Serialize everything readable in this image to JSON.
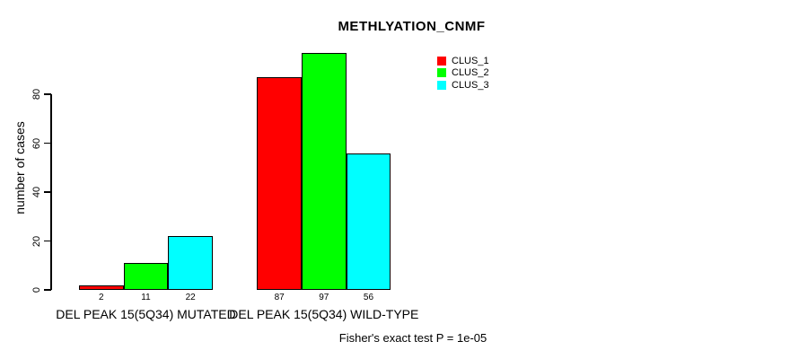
{
  "chart_data": {
    "type": "bar",
    "title": "METHLYATION_CNMF",
    "ylabel": "number of cases",
    "xlabel": "",
    "ylim": [
      0,
      100
    ],
    "yticks": [
      0,
      20,
      40,
      60,
      80
    ],
    "grid": false,
    "categories": [
      "DEL PEAK 15(5Q34) MUTATED",
      "DEL PEAK 15(5Q34) WILD-TYPE"
    ],
    "series": [
      {
        "name": "CLUS_1",
        "color": "#ff0000",
        "values": [
          2,
          87
        ]
      },
      {
        "name": "CLUS_2",
        "color": "#00ff00",
        "values": [
          11,
          97
        ]
      },
      {
        "name": "CLUS_3",
        "color": "#00ffff",
        "values": [
          22,
          56
        ]
      }
    ],
    "bar_value_labels": [
      [
        2,
        11,
        22
      ],
      [
        87,
        97,
        56
      ]
    ],
    "legend": {
      "position": "top-right-inside",
      "entries": [
        "CLUS_1",
        "CLUS_2",
        "CLUS_3"
      ]
    },
    "annotation": "Fisher's exact test P = 1e-05"
  }
}
